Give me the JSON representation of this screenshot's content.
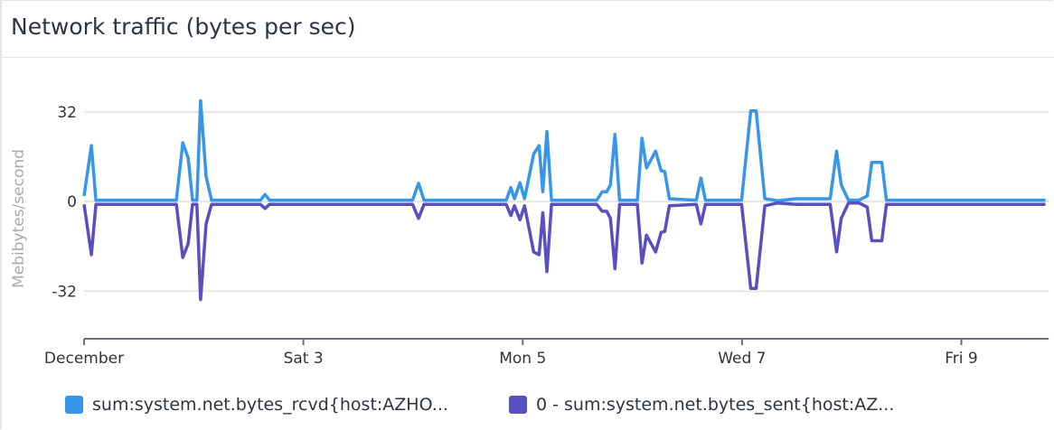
{
  "widget": {
    "title": "Network traffic (bytes per sec)"
  },
  "chart_data": {
    "type": "line",
    "ylabel": "Mebibytes/second",
    "xlabel": "",
    "ylim": [
      -49,
      51
    ],
    "xlim": [
      "Dec 1 00:00",
      "Dec 9 18:30"
    ],
    "yticks": [
      {
        "value": 32,
        "label": "32"
      },
      {
        "value": 0,
        "label": "0"
      },
      {
        "value": -32,
        "label": "-32"
      }
    ],
    "xticks": [
      {
        "at": "Dec 1 00:00",
        "label": "December"
      },
      {
        "at": "Dec 3 00:00",
        "label": "Sat 3"
      },
      {
        "at": "Dec 5 00:00",
        "label": "Mon 5"
      },
      {
        "at": "Dec 7 00:00",
        "label": "Wed 7"
      },
      {
        "at": "Dec 9 00:00",
        "label": "Fri 9"
      }
    ],
    "grid": true,
    "legend_position": "bottom",
    "series": [
      {
        "name": "sum:system.net.bytes_rcvd{host:AZHO...",
        "color": "#3796e8",
        "points": [
          [
            "Dec 1 00:00",
            2
          ],
          [
            "Dec 1 01:36",
            20
          ],
          [
            "Dec 1 02:36",
            0.5
          ],
          [
            "Dec 1 20:12",
            0.5
          ],
          [
            "Dec 1 21:36",
            21
          ],
          [
            "Dec 1 22:48",
            15.5
          ],
          [
            "Dec 1 23:45",
            0.5
          ],
          [
            "Dec 2 00:42",
            0.5
          ],
          [
            "Dec 2 01:30",
            36
          ],
          [
            "Dec 2 02:42",
            9
          ],
          [
            "Dec 2 03:54",
            0.5
          ],
          [
            "Dec 2 14:36",
            0.5
          ],
          [
            "Dec 2 15:36",
            2.5
          ],
          [
            "Dec 2 16:36",
            0.5
          ],
          [
            "Dec 3 23:54",
            0.5
          ],
          [
            "Dec 4 01:12",
            6.5
          ],
          [
            "Dec 4 02:24",
            0.5
          ],
          [
            "Dec 4 20:24",
            0.5
          ],
          [
            "Dec 4 21:24",
            5
          ],
          [
            "Dec 4 22:12",
            1
          ],
          [
            "Dec 4 23:24",
            6.7
          ],
          [
            "Dec 5 00:24",
            1
          ],
          [
            "Dec 5 02:24",
            17
          ],
          [
            "Dec 5 03:36",
            20
          ],
          [
            "Dec 5 04:24",
            3.5
          ],
          [
            "Dec 5 05:18",
            25
          ],
          [
            "Dec 5 06:18",
            0.5
          ],
          [
            "Dec 5 16:12",
            0.5
          ],
          [
            "Dec 5 17:24",
            3.5
          ],
          [
            "Dec 5 18:24",
            3.5
          ],
          [
            "Dec 5 19:12",
            6
          ],
          [
            "Dec 5 20:12",
            24
          ],
          [
            "Dec 5 21:12",
            0.5
          ],
          [
            "Dec 6 01:06",
            0.5
          ],
          [
            "Dec 6 02:06",
            22.6
          ],
          [
            "Dec 6 03:06",
            12
          ],
          [
            "Dec 6 05:06",
            18
          ],
          [
            "Dec 6 06:18",
            11
          ],
          [
            "Dec 6 07:06",
            10.7
          ],
          [
            "Dec 6 08:06",
            1
          ],
          [
            "Dec 6 14:00",
            0.5
          ],
          [
            "Dec 6 15:00",
            8.4
          ],
          [
            "Dec 6 16:00",
            0.5
          ],
          [
            "Dec 6 23:54",
            0.5
          ],
          [
            "Dec 7 01:54",
            32.4
          ],
          [
            "Dec 7 03:06",
            32.4
          ],
          [
            "Dec 7 05:00",
            1
          ],
          [
            "Dec 7 07:48",
            0.3
          ],
          [
            "Dec 7 11:48",
            1
          ],
          [
            "Dec 7 19:18",
            1
          ],
          [
            "Dec 7 20:42",
            18
          ],
          [
            "Dec 7 21:42",
            6
          ],
          [
            "Dec 7 23:18",
            0.5
          ],
          [
            "Dec 8 01:36",
            0.5
          ],
          [
            "Dec 8 03:24",
            2
          ],
          [
            "Dec 8 04:24",
            14
          ],
          [
            "Dec 8 06:36",
            14
          ],
          [
            "Dec 8 07:36",
            0.5
          ],
          [
            "Dec 9 18:24",
            0.5
          ]
        ]
      },
      {
        "name": "0 - sum:system.net.bytes_sent{host:AZ...",
        "color": "#5a4fbf",
        "points": [
          [
            "Dec 1 00:00",
            -1
          ],
          [
            "Dec 1 01:36",
            -19
          ],
          [
            "Dec 1 02:36",
            -1
          ],
          [
            "Dec 1 20:12",
            -1
          ],
          [
            "Dec 1 21:36",
            -20
          ],
          [
            "Dec 1 22:48",
            -15
          ],
          [
            "Dec 1 23:45",
            -1
          ],
          [
            "Dec 2 00:42",
            -1
          ],
          [
            "Dec 2 01:30",
            -35
          ],
          [
            "Dec 2 02:42",
            -8
          ],
          [
            "Dec 2 03:54",
            -1
          ],
          [
            "Dec 2 14:36",
            -1
          ],
          [
            "Dec 2 15:36",
            -2.5
          ],
          [
            "Dec 2 16:36",
            -1
          ],
          [
            "Dec 3 23:54",
            -1
          ],
          [
            "Dec 4 01:12",
            -6
          ],
          [
            "Dec 4 02:24",
            -1
          ],
          [
            "Dec 4 20:24",
            -1
          ],
          [
            "Dec 4 21:24",
            -5
          ],
          [
            "Dec 4 22:12",
            -1.5
          ],
          [
            "Dec 4 23:24",
            -6.5
          ],
          [
            "Dec 5 00:24",
            -1.5
          ],
          [
            "Dec 5 02:24",
            -18
          ],
          [
            "Dec 5 03:36",
            -19
          ],
          [
            "Dec 5 04:24",
            -4
          ],
          [
            "Dec 5 05:18",
            -25
          ],
          [
            "Dec 5 06:18",
            -1
          ],
          [
            "Dec 5 16:12",
            -1
          ],
          [
            "Dec 5 17:24",
            -3.5
          ],
          [
            "Dec 5 18:24",
            -3.5
          ],
          [
            "Dec 5 19:12",
            -6
          ],
          [
            "Dec 5 20:12",
            -24
          ],
          [
            "Dec 5 21:12",
            -1
          ],
          [
            "Dec 6 01:06",
            -1
          ],
          [
            "Dec 6 02:06",
            -22
          ],
          [
            "Dec 6 03:06",
            -12
          ],
          [
            "Dec 6 05:06",
            -18
          ],
          [
            "Dec 6 06:18",
            -11
          ],
          [
            "Dec 6 07:06",
            -10.7
          ],
          [
            "Dec 6 08:06",
            -1.5
          ],
          [
            "Dec 6 14:00",
            -1
          ],
          [
            "Dec 6 15:00",
            -8
          ],
          [
            "Dec 6 16:00",
            -1
          ],
          [
            "Dec 6 23:54",
            -1
          ],
          [
            "Dec 7 01:54",
            -31
          ],
          [
            "Dec 7 03:06",
            -31
          ],
          [
            "Dec 7 05:00",
            -1.5
          ],
          [
            "Dec 7 07:48",
            -0.5
          ],
          [
            "Dec 7 11:48",
            -1
          ],
          [
            "Dec 7 19:18",
            -1
          ],
          [
            "Dec 7 20:42",
            -18
          ],
          [
            "Dec 7 21:42",
            -6
          ],
          [
            "Dec 7 23:18",
            -0.5
          ],
          [
            "Dec 8 01:36",
            -0.5
          ],
          [
            "Dec 8 03:24",
            -2
          ],
          [
            "Dec 8 04:24",
            -14
          ],
          [
            "Dec 8 06:36",
            -14
          ],
          [
            "Dec 8 07:36",
            -1
          ],
          [
            "Dec 9 18:24",
            -1
          ]
        ]
      }
    ]
  }
}
